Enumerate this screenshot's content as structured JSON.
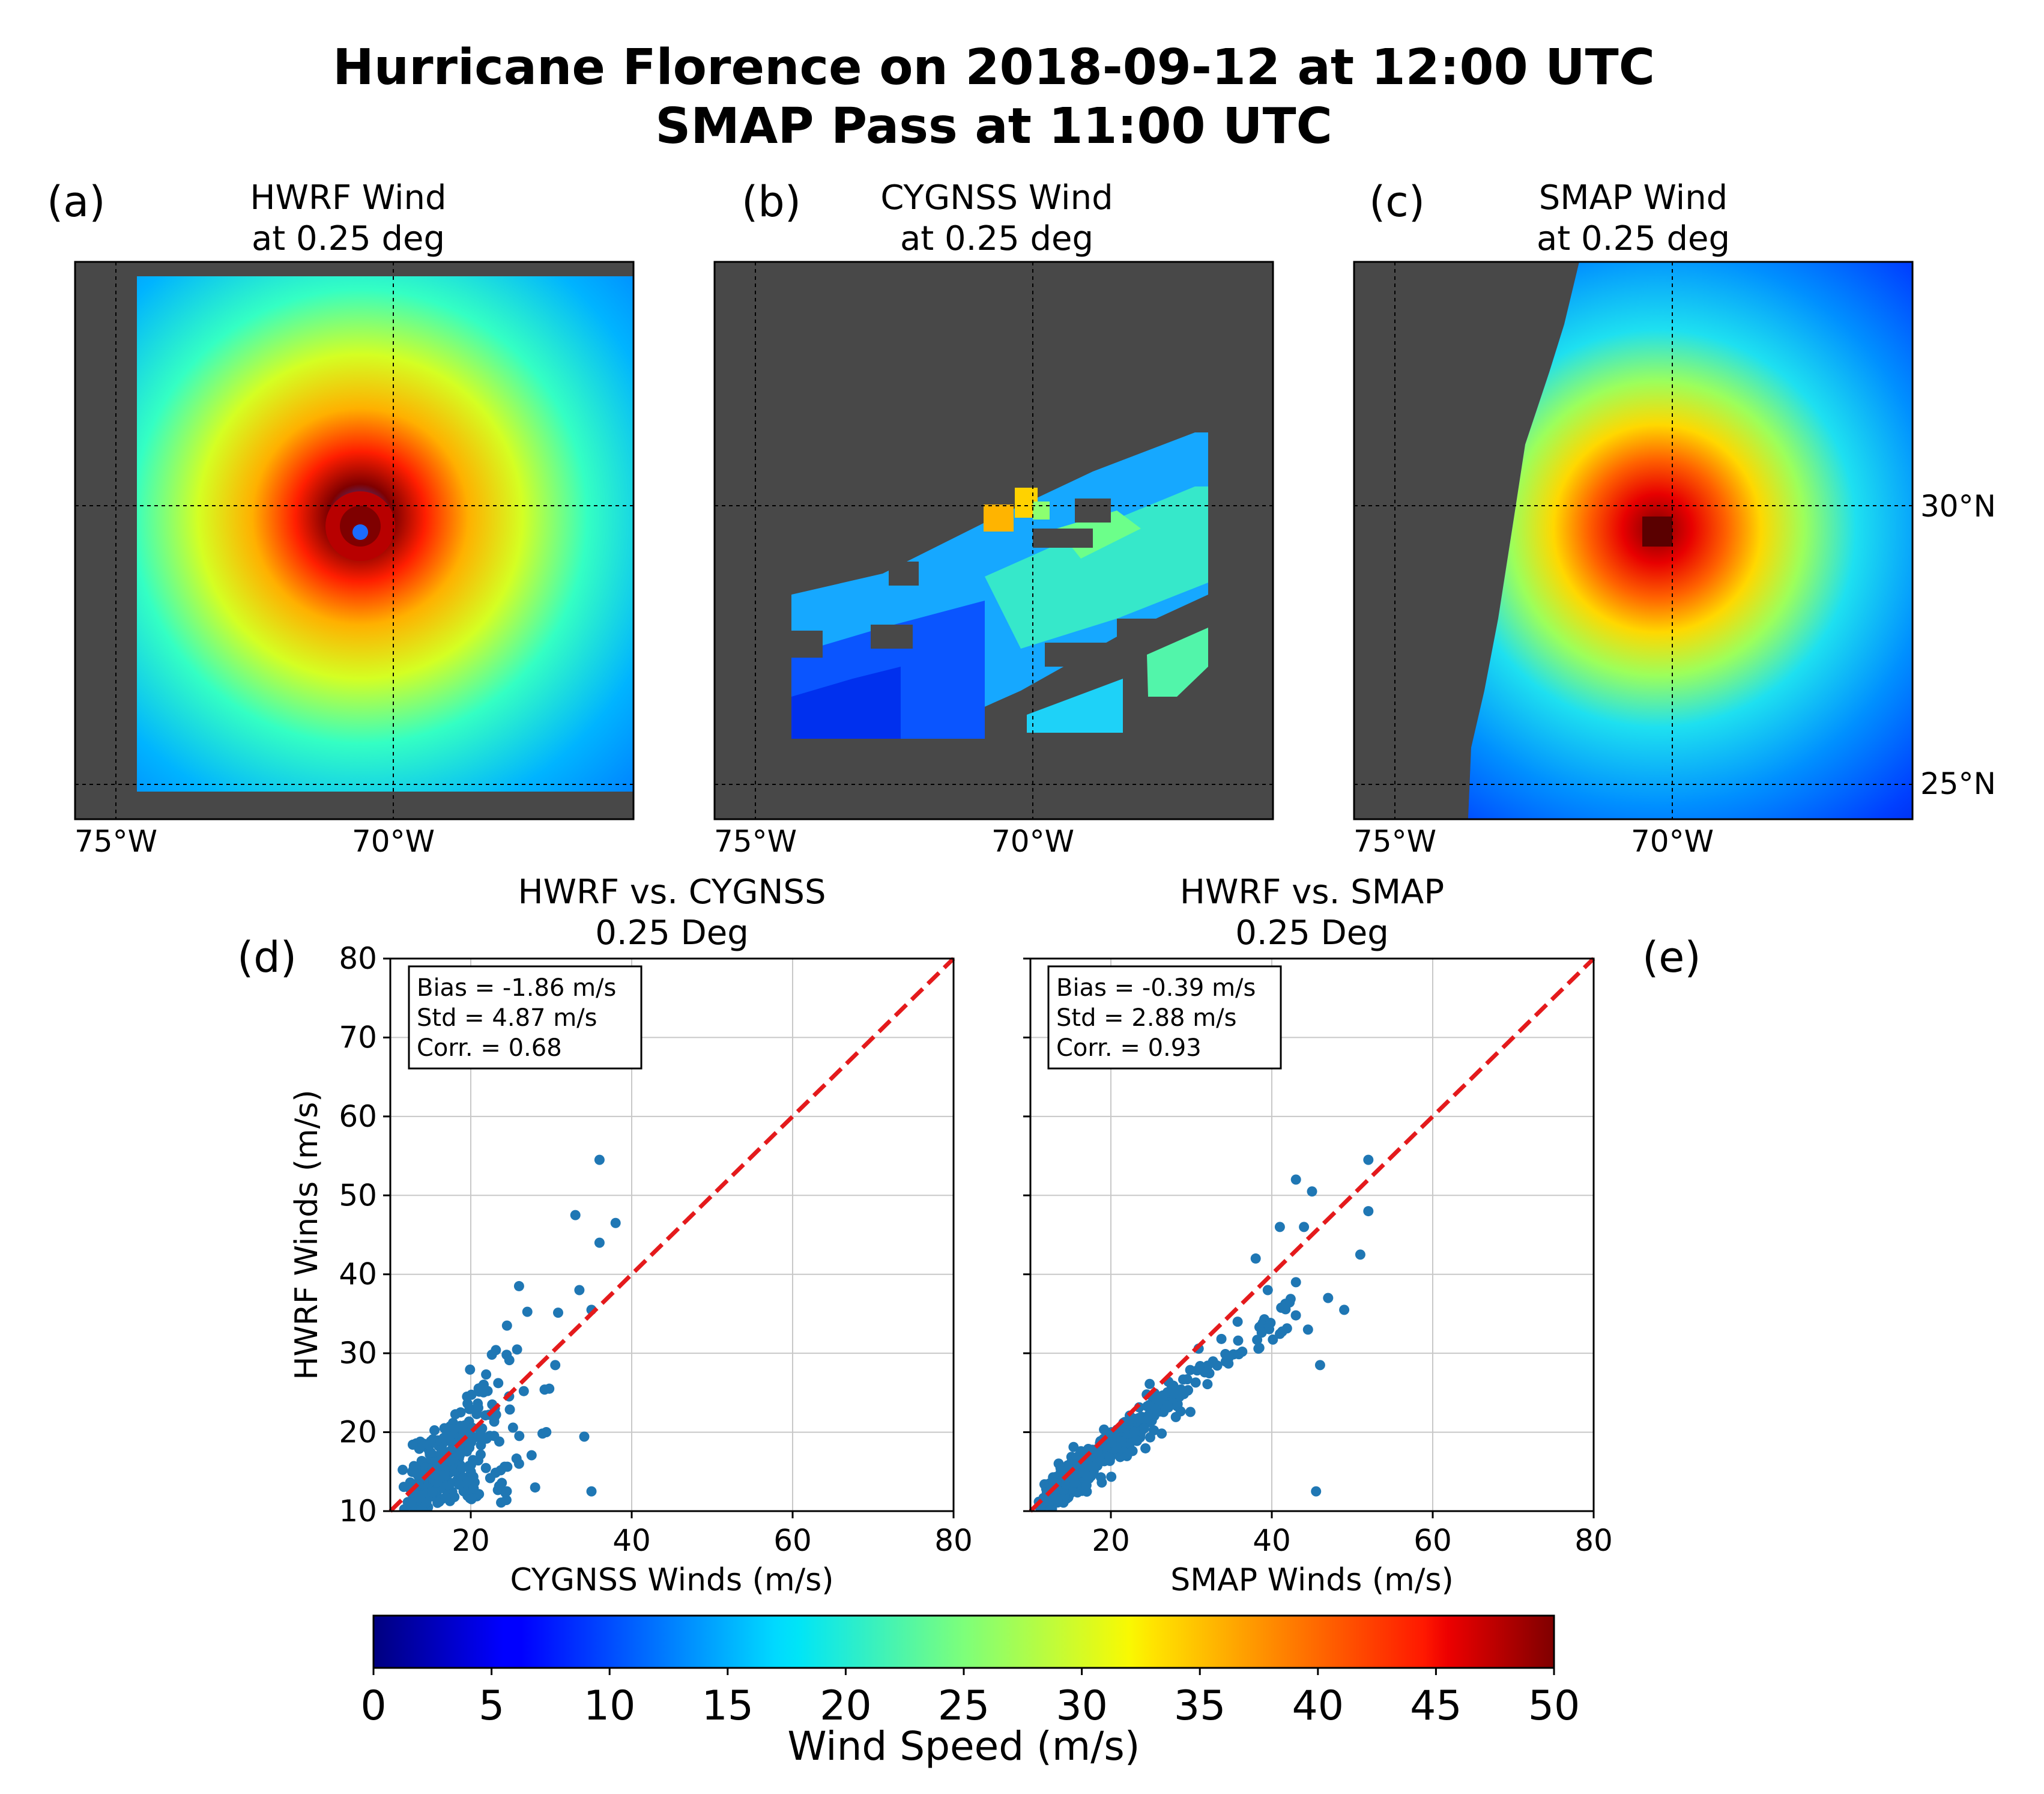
{
  "figure": {
    "title_line1": "Hurricane Florence on 2018-09-12 at 12:00 UTC",
    "title_line2": "SMAP Pass at 11:00 UTC"
  },
  "colors": {
    "land": "#484848",
    "grid": "#c8c8c8",
    "scatter": "#1f77b4",
    "one_to_one": "#e41a1c"
  },
  "maps": [
    {
      "label": "(a)",
      "title_line1": "HWRF Wind",
      "title_line2": "at 0.25 deg"
    },
    {
      "label": "(b)",
      "title_line1": "CYGNSS Wind",
      "title_line2": "at 0.25 deg"
    },
    {
      "label": "(c)",
      "title_line1": "SMAP Wind",
      "title_line2": "at 0.25 deg"
    }
  ],
  "map_axes": {
    "lon_ticks": [
      "75°W",
      "70°W"
    ],
    "lat_ticks": [
      "30°N",
      "25°N"
    ]
  },
  "chart_data": [
    {
      "type": "scatter",
      "label": "(d)",
      "title_line1": "HWRF vs. CYGNSS",
      "title_line2": "0.25 Deg",
      "xlabel": "CYGNSS Winds (m/s)",
      "ylabel": "HWRF Winds (m/s)",
      "xlim": [
        10,
        80
      ],
      "ylim": [
        10,
        80
      ],
      "xticks": [
        20,
        40,
        60,
        80
      ],
      "yticks": [
        10,
        20,
        30,
        40,
        50,
        60,
        70,
        80
      ],
      "grid": true,
      "stats": [
        "Bias = -1.86 m/s",
        "Std = 4.87 m/s",
        "Corr. = 0.68"
      ],
      "one_to_one_line": true,
      "points_notable": [
        [
          36,
          54.5
        ],
        [
          33,
          47.5
        ],
        [
          38,
          46.5
        ],
        [
          36,
          44
        ],
        [
          26,
          38.5
        ],
        [
          33.5,
          38
        ],
        [
          35,
          35.5
        ],
        [
          24.5,
          33.5
        ],
        [
          30.5,
          28.5
        ],
        [
          35,
          12.5
        ],
        [
          28,
          13
        ],
        [
          26,
          16
        ]
      ]
    },
    {
      "type": "scatter",
      "label": "(e)",
      "title_line1": "HWRF vs. SMAP",
      "title_line2": "0.25 Deg",
      "xlabel": "SMAP Winds (m/s)",
      "ylabel": "",
      "xlim": [
        10,
        80
      ],
      "ylim": [
        10,
        80
      ],
      "xticks": [
        20,
        40,
        60,
        80
      ],
      "yticks": [
        10,
        20,
        30,
        40,
        50,
        60,
        70,
        80
      ],
      "grid": true,
      "stats": [
        "Bias = -0.39 m/s",
        "Std = 2.88 m/s",
        "Corr. = 0.93"
      ],
      "one_to_one_line": true,
      "points_notable": [
        [
          52,
          54.5
        ],
        [
          43,
          52
        ],
        [
          45,
          50.5
        ],
        [
          52,
          48
        ],
        [
          41,
          46
        ],
        [
          44,
          46
        ],
        [
          51,
          42.5
        ],
        [
          49,
          35.5
        ],
        [
          43,
          39
        ],
        [
          39.5,
          38
        ],
        [
          38,
          42
        ],
        [
          46,
          28.5
        ],
        [
          45.5,
          12.5
        ],
        [
          47,
          37
        ],
        [
          44.5,
          33
        ]
      ]
    },
    {
      "type": "colorbar",
      "label": "Wind Speed (m/s)",
      "range": [
        0,
        50
      ],
      "ticks": [
        0,
        5,
        10,
        15,
        20,
        25,
        30,
        35,
        40,
        45,
        50
      ],
      "colormap": "jet"
    }
  ]
}
